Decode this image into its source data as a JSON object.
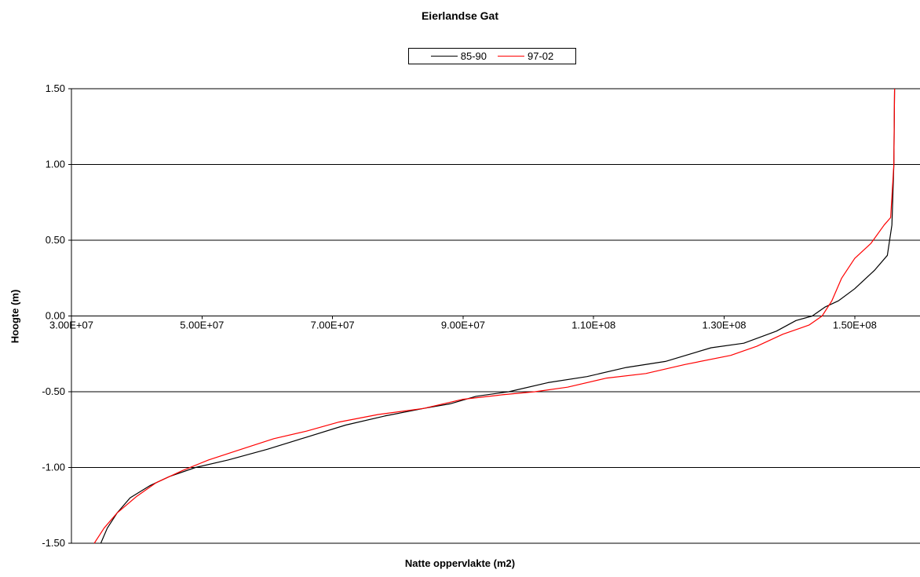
{
  "chart_data": {
    "type": "line",
    "title": "Eierlandse Gat",
    "xlabel": "Natte oppervlakte (m2)",
    "ylabel": "Hoogte (m)",
    "xlim": [
      30000000,
      160000000
    ],
    "ylim": [
      -1.5,
      1.5
    ],
    "x_ticks": [
      "3.00E+07",
      "5.00E+07",
      "7.00E+07",
      "9.00E+07",
      "1.10E+08",
      "1.30E+08",
      "1.50E+08"
    ],
    "x_tick_values": [
      30000000,
      50000000,
      70000000,
      90000000,
      110000000,
      130000000,
      150000000
    ],
    "y_ticks": [
      "1.50",
      "1.00",
      "0.50",
      "0.00",
      "-0.50",
      "-1.00",
      "-1.50"
    ],
    "y_tick_values": [
      1.5,
      1.0,
      0.5,
      0.0,
      -0.5,
      -1.0,
      -1.5
    ],
    "grid": "horizontal",
    "legend_position": "top",
    "series": [
      {
        "name": "85-90",
        "color": "#000000",
        "points": [
          [
            34500000,
            -1.5
          ],
          [
            35500000,
            -1.4
          ],
          [
            37000000,
            -1.3
          ],
          [
            39000000,
            -1.2
          ],
          [
            42000000,
            -1.12
          ],
          [
            45000000,
            -1.06
          ],
          [
            49000000,
            -1.0
          ],
          [
            54000000,
            -0.95
          ],
          [
            60000000,
            -0.88
          ],
          [
            66000000,
            -0.8
          ],
          [
            72000000,
            -0.72
          ],
          [
            78000000,
            -0.66
          ],
          [
            84000000,
            -0.61
          ],
          [
            88000000,
            -0.58
          ],
          [
            92000000,
            -0.53
          ],
          [
            97000000,
            -0.5
          ],
          [
            103000000,
            -0.44
          ],
          [
            109000000,
            -0.4
          ],
          [
            115000000,
            -0.34
          ],
          [
            121000000,
            -0.3
          ],
          [
            128000000,
            -0.21
          ],
          [
            133000000,
            -0.18
          ],
          [
            138000000,
            -0.1
          ],
          [
            141000000,
            -0.03
          ],
          [
            143500000,
            0.0
          ],
          [
            145500000,
            0.06
          ],
          [
            147500000,
            0.1
          ],
          [
            150000000,
            0.18
          ],
          [
            153000000,
            0.3
          ],
          [
            155000000,
            0.4
          ],
          [
            155700000,
            0.6
          ],
          [
            156000000,
            1.0
          ],
          [
            156100000,
            1.5
          ]
        ]
      },
      {
        "name": "97-02",
        "color": "#ff0000",
        "points": [
          [
            33500000,
            -1.5
          ],
          [
            35000000,
            -1.4
          ],
          [
            37000000,
            -1.3
          ],
          [
            40000000,
            -1.19
          ],
          [
            43000000,
            -1.1
          ],
          [
            47000000,
            -1.02
          ],
          [
            51000000,
            -0.95
          ],
          [
            56000000,
            -0.88
          ],
          [
            61000000,
            -0.81
          ],
          [
            66000000,
            -0.76
          ],
          [
            71000000,
            -0.7
          ],
          [
            77000000,
            -0.65
          ],
          [
            84000000,
            -0.61
          ],
          [
            90000000,
            -0.55
          ],
          [
            96000000,
            -0.52
          ],
          [
            101000000,
            -0.5
          ],
          [
            106000000,
            -0.47
          ],
          [
            112000000,
            -0.41
          ],
          [
            118000000,
            -0.38
          ],
          [
            124000000,
            -0.32
          ],
          [
            131000000,
            -0.26
          ],
          [
            135000000,
            -0.2
          ],
          [
            139000000,
            -0.12
          ],
          [
            143000000,
            -0.06
          ],
          [
            145000000,
            0.0
          ],
          [
            146500000,
            0.1
          ],
          [
            148000000,
            0.25
          ],
          [
            150000000,
            0.38
          ],
          [
            152500000,
            0.48
          ],
          [
            154500000,
            0.6
          ],
          [
            155500000,
            0.65
          ],
          [
            156000000,
            1.0
          ],
          [
            156100000,
            1.5
          ]
        ]
      }
    ]
  }
}
